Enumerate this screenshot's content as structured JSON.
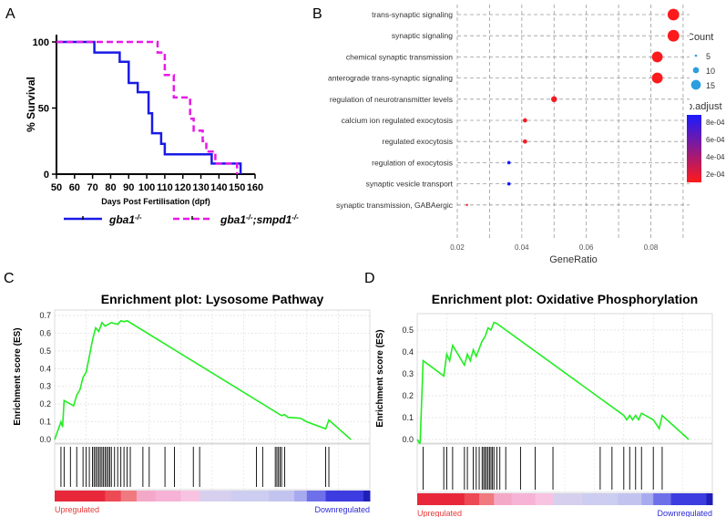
{
  "panels": {
    "a": "A",
    "b": "B",
    "c": "C",
    "d": "D"
  },
  "chart_data": [
    {
      "panel": "A",
      "type": "line",
      "title": "",
      "xlabel": "Days Post Fertilisation (dpf)",
      "ylabel": "% Survival",
      "xlim": [
        50,
        160
      ],
      "ylim": [
        0,
        100
      ],
      "xticks": [
        "50",
        "60",
        "70",
        "80",
        "90",
        "100",
        "110",
        "120",
        "130",
        "140",
        "150",
        "160"
      ],
      "yticks": [
        "0",
        "50",
        "100"
      ],
      "legend_position": "bottom",
      "series": [
        {
          "name": "gba1",
          "name_sup": "-/-",
          "color": "#1a1ae6",
          "style": "solid",
          "steps": [
            [
              50,
              100
            ],
            [
              71,
              100
            ],
            [
              71,
              92
            ],
            [
              85,
              92
            ],
            [
              85,
              85
            ],
            [
              90,
              85
            ],
            [
              90,
              69
            ],
            [
              95,
              69
            ],
            [
              95,
              62
            ],
            [
              101,
              62
            ],
            [
              101,
              46
            ],
            [
              103,
              46
            ],
            [
              103,
              31
            ],
            [
              108,
              31
            ],
            [
              108,
              23
            ],
            [
              110,
              23
            ],
            [
              110,
              15
            ],
            [
              136,
              15
            ],
            [
              136,
              8
            ],
            [
              152,
              8
            ],
            [
              152,
              0
            ]
          ]
        },
        {
          "name": "gba1",
          "name_sup": "-/-",
          "name_suffix": ";smpd1",
          "name_suffix_sup": "-/-",
          "color": "#e61ae6",
          "style": "dashed",
          "steps": [
            [
              50,
              100
            ],
            [
              106,
              100
            ],
            [
              106,
              92
            ],
            [
              110,
              92
            ],
            [
              110,
              75
            ],
            [
              115,
              75
            ],
            [
              115,
              58
            ],
            [
              124,
              58
            ],
            [
              124,
              42
            ],
            [
              126,
              42
            ],
            [
              126,
              33
            ],
            [
              131,
              33
            ],
            [
              131,
              25
            ],
            [
              133,
              25
            ],
            [
              133,
              17
            ],
            [
              138,
              17
            ],
            [
              138,
              8
            ],
            [
              150,
              8
            ],
            [
              150,
              0
            ]
          ]
        }
      ]
    },
    {
      "panel": "B",
      "type": "scatter",
      "title": "",
      "xlabel": "GeneRatio",
      "ylabel": "",
      "xlim": [
        0.02,
        0.092
      ],
      "xticks": [
        "0.02",
        "0.04",
        "0.06",
        "0.08"
      ],
      "categories": [
        "trans-synaptic signaling",
        "synaptic signaling",
        "chemical synaptic transmission",
        "anterograde trans-synaptic signaling",
        "regulation of neurotransmitter levels",
        "calcium ion regulated exocytosis",
        "regulated exocytosis",
        "regulation of exocytosis",
        "synaptic vesicle transport",
        "synaptic transmission, GABAergic"
      ],
      "points": [
        {
          "term": "trans-synaptic signaling",
          "x": 0.087,
          "count": 16,
          "p_adjust": 1e-05
        },
        {
          "term": "synaptic signaling",
          "x": 0.087,
          "count": 16,
          "p_adjust": 1e-05
        },
        {
          "term": "chemical synaptic transmission",
          "x": 0.082,
          "count": 15,
          "p_adjust": 1e-05
        },
        {
          "term": "anterograde trans-synaptic signaling",
          "x": 0.082,
          "count": 15,
          "p_adjust": 1e-05
        },
        {
          "term": "regulation of neurotransmitter levels",
          "x": 0.05,
          "count": 9,
          "p_adjust": 3e-05
        },
        {
          "term": "calcium ion regulated exocytosis",
          "x": 0.041,
          "count": 7,
          "p_adjust": 3e-05
        },
        {
          "term": "regulated exocytosis",
          "x": 0.041,
          "count": 7,
          "p_adjust": 3e-05
        },
        {
          "term": "regulation of exocytosis",
          "x": 0.036,
          "count": 6,
          "p_adjust": 0.00085
        },
        {
          "term": "synaptic vesicle transport",
          "x": 0.036,
          "count": 6,
          "p_adjust": 0.00085
        },
        {
          "term": "synaptic transmission, GABAergic",
          "x": 0.023,
          "count": 4,
          "p_adjust": 1e-05
        }
      ],
      "legend": {
        "count_title": "Count",
        "count_items": [
          {
            "label": "5",
            "value": 5
          },
          {
            "label": "10",
            "value": 10
          },
          {
            "label": "15",
            "value": 15
          }
        ],
        "color_title": "p.adjust",
        "color_ticks": [
          "8e-04",
          "6e-04",
          "4e-04",
          "2e-04"
        ],
        "color_low": "#ff1a1a",
        "color_high": "#1a1aff"
      }
    },
    {
      "panel": "C",
      "type": "line",
      "title": "Enrichment plot: Lysosome Pathway",
      "xlabel": "",
      "ylabel": "Enrichment score (ES)",
      "ylim": [
        0,
        0.7
      ],
      "yticks": [
        "0.0",
        "0.1",
        "0.2",
        "0.3",
        "0.4",
        "0.5",
        "0.6",
        "0.7"
      ],
      "line_color": "#22ee22",
      "es_curve": [
        [
          0,
          0
        ],
        [
          0.02,
          0.1
        ],
        [
          0.025,
          0.07
        ],
        [
          0.03,
          0.22
        ],
        [
          0.06,
          0.19
        ],
        [
          0.07,
          0.25
        ],
        [
          0.08,
          0.28
        ],
        [
          0.09,
          0.35
        ],
        [
          0.1,
          0.38
        ],
        [
          0.11,
          0.47
        ],
        [
          0.12,
          0.56
        ],
        [
          0.13,
          0.63
        ],
        [
          0.14,
          0.61
        ],
        [
          0.15,
          0.66
        ],
        [
          0.16,
          0.64
        ],
        [
          0.17,
          0.65
        ],
        [
          0.18,
          0.66
        ],
        [
          0.2,
          0.65
        ],
        [
          0.21,
          0.67
        ],
        [
          0.22,
          0.665
        ],
        [
          0.23,
          0.67
        ],
        [
          0.72,
          0.135
        ],
        [
          0.73,
          0.14
        ],
        [
          0.74,
          0.125
        ],
        [
          0.78,
          0.12
        ],
        [
          0.8,
          0.1
        ],
        [
          0.86,
          0.06
        ],
        [
          0.87,
          0.11
        ],
        [
          0.94,
          0
        ]
      ],
      "hit_positions": [
        0.02,
        0.03,
        0.05,
        0.07,
        0.09,
        0.1,
        0.11,
        0.12,
        0.125,
        0.13,
        0.135,
        0.14,
        0.145,
        0.15,
        0.155,
        0.16,
        0.165,
        0.17,
        0.175,
        0.18,
        0.19,
        0.2,
        0.21,
        0.22,
        0.23,
        0.24,
        0.28,
        0.3,
        0.35,
        0.38,
        0.44,
        0.46,
        0.64,
        0.66,
        0.7,
        0.705,
        0.71,
        0.715,
        0.72,
        0.73,
        0.86,
        0.87
      ],
      "rank_label_left": "Upregulated",
      "rank_label_right": "Downregulated"
    },
    {
      "panel": "D",
      "type": "line",
      "title": "Enrichment plot: Oxidative Phosphorylation",
      "xlabel": "",
      "ylabel": "Enrichment score (ES)",
      "ylim": [
        0,
        0.55
      ],
      "yticks": [
        "0.0",
        "0.1",
        "0.2",
        "0.3",
        "0.4",
        "0.5"
      ],
      "line_color": "#22ee22",
      "es_curve": [
        [
          0,
          0
        ],
        [
          0.01,
          -0.02
        ],
        [
          0.02,
          0.36
        ],
        [
          0.09,
          0.29
        ],
        [
          0.1,
          0.39
        ],
        [
          0.11,
          0.36
        ],
        [
          0.12,
          0.43
        ],
        [
          0.16,
          0.34
        ],
        [
          0.17,
          0.39
        ],
        [
          0.18,
          0.36
        ],
        [
          0.19,
          0.41
        ],
        [
          0.2,
          0.38
        ],
        [
          0.22,
          0.45
        ],
        [
          0.23,
          0.47
        ],
        [
          0.24,
          0.51
        ],
        [
          0.25,
          0.5
        ],
        [
          0.26,
          0.535
        ],
        [
          0.27,
          0.53
        ],
        [
          0.7,
          0.11
        ],
        [
          0.71,
          0.09
        ],
        [
          0.72,
          0.11
        ],
        [
          0.73,
          0.09
        ],
        [
          0.74,
          0.11
        ],
        [
          0.75,
          0.09
        ],
        [
          0.76,
          0.12
        ],
        [
          0.8,
          0.09
        ],
        [
          0.82,
          0.05
        ],
        [
          0.83,
          0.11
        ],
        [
          0.92,
          0
        ]
      ],
      "hit_positions": [
        0.02,
        0.09,
        0.1,
        0.12,
        0.16,
        0.17,
        0.19,
        0.2,
        0.21,
        0.22,
        0.225,
        0.23,
        0.235,
        0.24,
        0.245,
        0.25,
        0.255,
        0.26,
        0.27,
        0.28,
        0.3,
        0.35,
        0.4,
        0.46,
        0.62,
        0.66,
        0.7,
        0.72,
        0.74,
        0.76,
        0.8,
        0.83
      ],
      "rank_label_left": "Upregulated",
      "rank_label_right": "Downregulated"
    }
  ]
}
